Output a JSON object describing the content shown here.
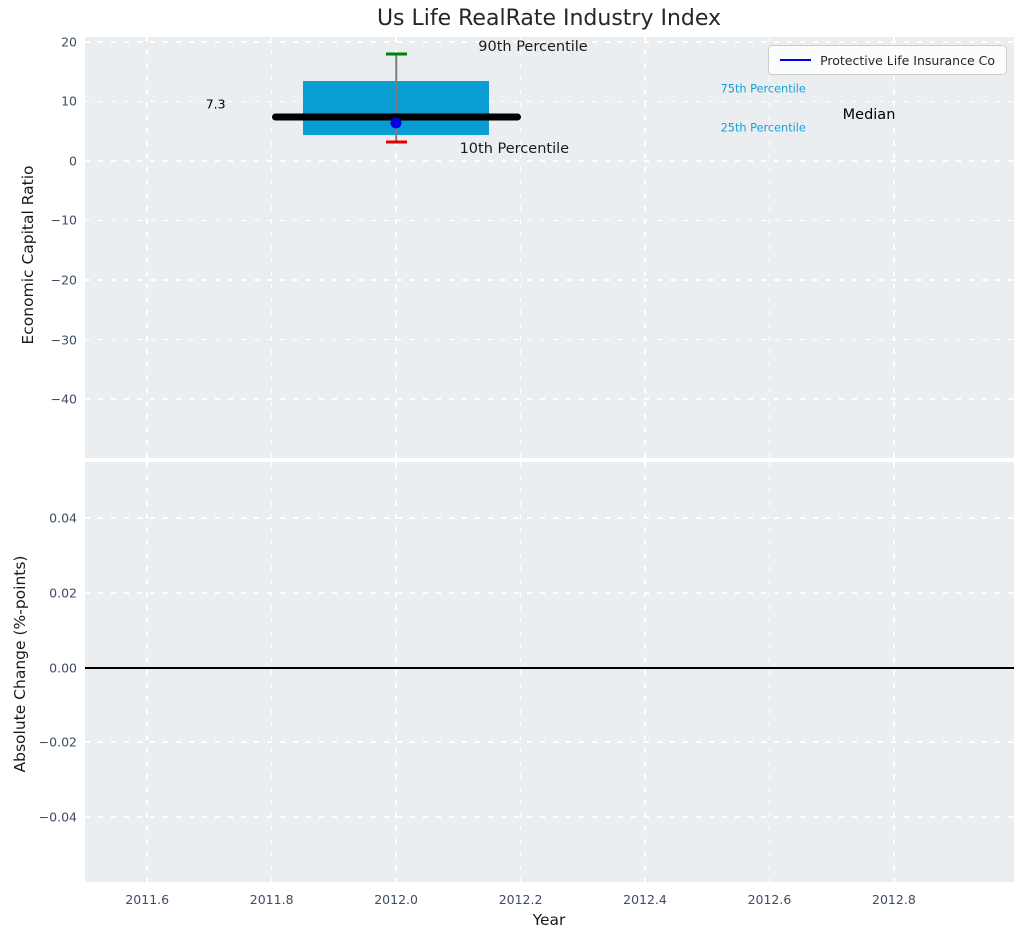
{
  "colors": {
    "plot_background": "#ebeef0",
    "grid": "#ffffff",
    "tick_label": "#3e4c63",
    "title_text": "#262626",
    "axis_label": "#1a1a1a",
    "box_fill": "#0a9dd2",
    "median_line": "#000000",
    "whisker": "#7d7d7d",
    "p90_cap": "#008000",
    "p10_cap": "#e50000",
    "company_dot": "#0000e0",
    "legend_line": "#0000f0",
    "percentile_label": "#14a0d8",
    "zero_line": "#000000"
  },
  "chart_data": [
    {
      "type": "boxplot",
      "panel": "top",
      "title": "Us Life RealRate Industry Index",
      "ylabel": "Economic Capital Ratio",
      "xlim": [
        2011.5,
        2012.993
      ],
      "ylim": [
        -49.9,
        20.8
      ],
      "grid": true,
      "xtick_labels_visible": false,
      "xticks": [
        {
          "v": 2011.6,
          "label": "2011.6"
        },
        {
          "v": 2011.8,
          "label": "2011.8"
        },
        {
          "v": 2012.0,
          "label": "2012.0"
        },
        {
          "v": 2012.2,
          "label": "2012.2"
        },
        {
          "v": 2012.4,
          "label": "2012.4"
        },
        {
          "v": 2012.6,
          "label": "2012.6"
        },
        {
          "v": 2012.8,
          "label": "2012.8"
        }
      ],
      "yticks": [
        {
          "v": 20,
          "label": "20"
        },
        {
          "v": 10,
          "label": "10"
        },
        {
          "v": 0,
          "label": "0"
        },
        {
          "v": -10,
          "label": "−10"
        },
        {
          "v": -20,
          "label": "−20"
        },
        {
          "v": -30,
          "label": "−30"
        },
        {
          "v": -40,
          "label": "−40"
        }
      ],
      "box": {
        "x": 2012.0,
        "box_left": 2011.85,
        "box_right": 2012.15,
        "median_left": 2011.8,
        "median_right": 2012.2,
        "cap_half_width": 0.017,
        "p90": 17.9,
        "p75": 13.4,
        "median": 7.3,
        "p25": 4.4,
        "p10": 3.1
      },
      "company_point": {
        "name": "Protective Life Insurance Co",
        "x": 2012.0,
        "value": 6.3
      },
      "annotations": [
        {
          "text": "90th Percentile",
          "x": 2012.22,
          "y": 19.2,
          "color": "#1a1a1a",
          "size": 14.5
        },
        {
          "text": "10th Percentile",
          "x": 2012.19,
          "y": 2.0,
          "color": "#1a1a1a",
          "size": 14.5
        },
        {
          "text": "75th Percentile",
          "x": 2012.59,
          "y": 12.1,
          "color": "#14a0d8",
          "size": 11.3
        },
        {
          "text": "25th Percentile",
          "x": 2012.59,
          "y": 5.5,
          "color": "#14a0d8",
          "size": 11.3
        },
        {
          "text": "Median",
          "x": 2012.76,
          "y": 7.7,
          "color": "#000000",
          "size": 14.5
        },
        {
          "text": "7.3",
          "x": 2011.71,
          "y": 9.6,
          "color": "#000000",
          "size": 12.5
        }
      ],
      "legend": {
        "label": "Protective Life Insurance Co"
      }
    },
    {
      "type": "line",
      "panel": "bottom",
      "ylabel": "Absolute Change (%-points)",
      "xlabel": "Year",
      "xlim": [
        2011.5,
        2012.993
      ],
      "ylim": [
        -0.0574,
        0.055
      ],
      "grid": true,
      "xtick_labels_visible": true,
      "xticks": [
        {
          "v": 2011.6,
          "label": "2011.6"
        },
        {
          "v": 2011.8,
          "label": "2011.8"
        },
        {
          "v": 2012.0,
          "label": "2012.0"
        },
        {
          "v": 2012.2,
          "label": "2012.2"
        },
        {
          "v": 2012.4,
          "label": "2012.4"
        },
        {
          "v": 2012.6,
          "label": "2012.6"
        },
        {
          "v": 2012.8,
          "label": "2012.8"
        }
      ],
      "yticks": [
        {
          "v": 0.04,
          "label": "0.04"
        },
        {
          "v": 0.02,
          "label": "0.02"
        },
        {
          "v": 0.0,
          "label": "0.00"
        },
        {
          "v": -0.02,
          "label": "−0.02"
        },
        {
          "v": -0.04,
          "label": "−0.04"
        }
      ],
      "zero_line_y": 0.0
    }
  ]
}
